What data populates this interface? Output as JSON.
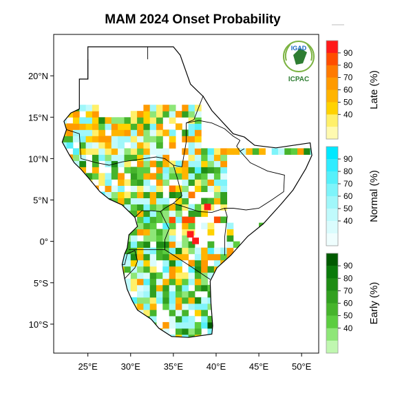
{
  "title": "MAM 2024 Onset Probability",
  "logo": {
    "top_text": "IGAD",
    "bottom_text": "ICPAC"
  },
  "map": {
    "lon_range": [
      21,
      52
    ],
    "lat_range": [
      -13.5,
      25
    ],
    "x_ticks": [
      {
        "value": 25,
        "label": "25°E"
      },
      {
        "value": 30,
        "label": "30°E"
      },
      {
        "value": 35,
        "label": "35°E"
      },
      {
        "value": 40,
        "label": "40°E"
      },
      {
        "value": 45,
        "label": "45°E"
      },
      {
        "value": 50,
        "label": "50°E"
      }
    ],
    "y_ticks": [
      {
        "value": 20,
        "label": "20°N"
      },
      {
        "value": 15,
        "label": "15°N"
      },
      {
        "value": 10,
        "label": "10°N"
      },
      {
        "value": 5,
        "label": "5°N"
      },
      {
        "value": 0,
        "label": "0°"
      },
      {
        "value": -5,
        "label": "5°S"
      },
      {
        "value": -10,
        "label": "10°S"
      }
    ]
  },
  "legends": [
    {
      "title": "Late (%)",
      "ticks": [
        "90",
        "80",
        "70",
        "60",
        "50",
        "40"
      ],
      "colors": [
        "#ff1a1a",
        "#ff4d00",
        "#ff7a00",
        "#ff9a00",
        "#ffb400",
        "#ffd200",
        "#fff06a",
        "#fffab0"
      ]
    },
    {
      "title": "Normal (%)",
      "ticks": [
        "90",
        "80",
        "70",
        "60",
        "50",
        "40"
      ],
      "colors": [
        "#00e8ff",
        "#30ecff",
        "#55f0fa",
        "#7ef4fa",
        "#a0f7fa",
        "#c0fafc",
        "#dafcfd",
        "#effefe"
      ]
    },
    {
      "title": "Early (%)",
      "ticks": [
        "90",
        "80",
        "70",
        "60",
        "50",
        "40"
      ],
      "colors": [
        "#005a00",
        "#0a7a0a",
        "#1e8c14",
        "#32a020",
        "#46b42c",
        "#5ccd40",
        "#8ee678",
        "#c0f7b0"
      ]
    }
  ]
}
